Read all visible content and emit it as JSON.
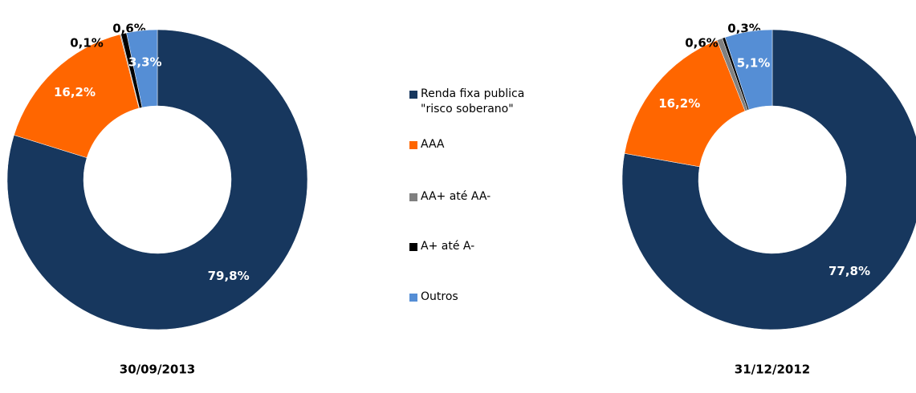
{
  "chart_data": [
    {
      "type": "donut",
      "title": "30/09/2013",
      "categories": [
        "Renda fixa publica \"risco soberano\"",
        "AAA",
        "AA+ até AA-",
        "A+ até A-",
        "Outros"
      ],
      "values": [
        79.8,
        16.2,
        0.1,
        0.6,
        3.3
      ],
      "value_labels": [
        "79,8%",
        "16,2%",
        "0,1%",
        "0,6%",
        "3,3%"
      ],
      "colors": [
        "#17375e",
        "#ff6600",
        "#808080",
        "#000000",
        "#558ed5"
      ]
    },
    {
      "type": "donut",
      "title": "31/12/2012",
      "categories": [
        "Renda fixa publica \"risco soberano\"",
        "AAA",
        "AA+ até AA-",
        "A+ até A-",
        "Outros"
      ],
      "values": [
        77.8,
        16.2,
        0.6,
        0.3,
        5.1
      ],
      "value_labels": [
        "77,8%",
        "16,2%",
        "0,6%",
        "0,3%",
        "5,1%"
      ],
      "colors": [
        "#17375e",
        "#ff6600",
        "#808080",
        "#000000",
        "#558ed5"
      ]
    }
  ]
}
